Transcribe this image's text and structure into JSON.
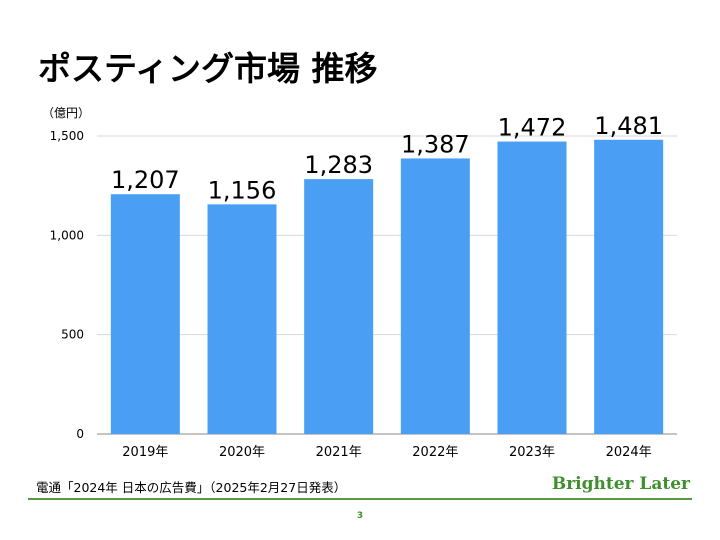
{
  "slide": {
    "title": "ポスティング市場 推移",
    "source": "電通「2024年 日本の広告費」（2025年2月27日発表）",
    "brand": "Brighter Later",
    "page_number": "3"
  },
  "colors": {
    "bar": "#4a9ff5",
    "grid": "#d9d9d9",
    "brand": "#3f8f2e"
  },
  "chart_data": {
    "type": "bar",
    "unit_label": "（億円）",
    "categories": [
      "2019年",
      "2020年",
      "2021年",
      "2022年",
      "2023年",
      "2024年"
    ],
    "values": [
      1207,
      1156,
      1283,
      1387,
      1472,
      1481
    ],
    "value_labels": [
      "1,207",
      "1,156",
      "1,283",
      "1,387",
      "1,472",
      "1,481"
    ],
    "yticks": [
      0,
      500,
      1000,
      1500
    ],
    "ytick_labels": [
      "0",
      "500",
      "1,000",
      "1,500"
    ],
    "ylim": [
      0,
      1500
    ],
    "grid": true,
    "legend": "none"
  }
}
